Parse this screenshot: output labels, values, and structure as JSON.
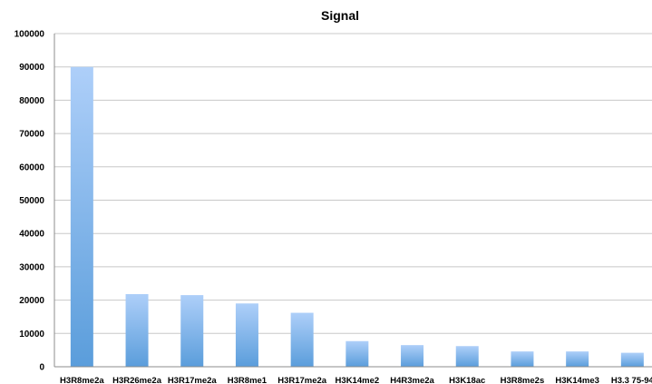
{
  "chart_data": {
    "type": "bar",
    "title": "Signal",
    "xlabel": "",
    "ylabel": "",
    "ylim": [
      0,
      100000
    ],
    "yticks": [
      0,
      10000,
      20000,
      30000,
      40000,
      50000,
      60000,
      70000,
      80000,
      90000,
      100000
    ],
    "grid": true,
    "legend": "none",
    "bar_color_top": "#aecff9",
    "bar_color_bottom": "#5a9ddb",
    "categories": [
      "H3R8me2a",
      "H3R26me2a",
      "H3R17me2a",
      "H3R8me1",
      "H3R17me2a",
      "H3K14me2",
      "H4R3me2a",
      "H3K18ac",
      "H3R8me2s",
      "H3K14me3",
      "H3.3 75-94"
    ],
    "values": [
      90000,
      21800,
      21500,
      19000,
      16200,
      7700,
      6500,
      6200,
      4600,
      4600,
      4200
    ]
  }
}
